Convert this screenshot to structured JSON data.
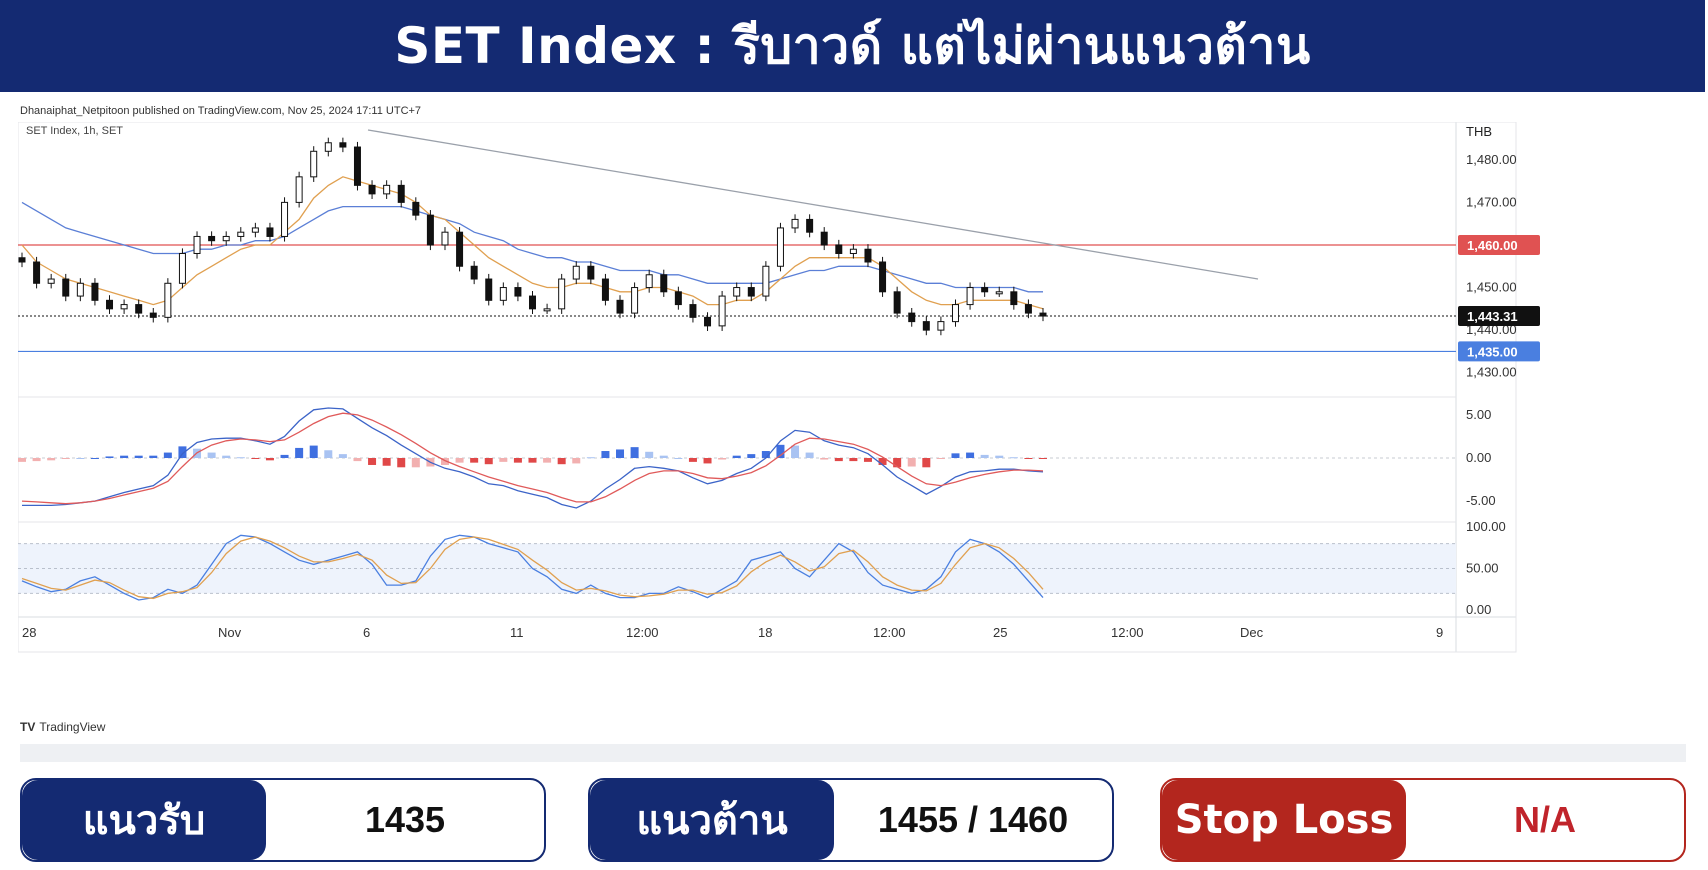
{
  "header": {
    "title": "SET Index : รีบาวด์ แต่ไม่ผ่านแนวต้าน"
  },
  "credit": "Dhanaiphat_Netpitoon published on TradingView.com, Nov 25, 2024 17:11 UTC+7",
  "chart_data": {
    "type": "candlestick",
    "symbol_label": "SET Index, 1h, SET",
    "currency": "THB",
    "price_axis": {
      "ylim": [
        1425,
        1487
      ],
      "ticks": [
        "1,480.00",
        "1,470.00",
        "1,450.00",
        "1,440.00",
        "1,430.00"
      ]
    },
    "x_ticks": [
      "28",
      "Nov",
      "6",
      "11",
      "12:00",
      "18",
      "12:00",
      "25",
      "12:00",
      "Dec",
      "9"
    ],
    "levels": [
      {
        "name": "resistance",
        "value": 1460,
        "label": "1,460.00",
        "color": "#e05252"
      },
      {
        "name": "support",
        "value": 1435,
        "label": "1,435.00",
        "color": "#4a7fe0"
      },
      {
        "name": "last",
        "value": 1443.31,
        "label": "1,443.31",
        "color": "#111111"
      }
    ],
    "downtrend_line": {
      "from": [
        0,
        1487
      ],
      "to": [
        1,
        1452
      ]
    },
    "close_series": [
      1456,
      1451,
      1452,
      1448,
      1451,
      1447,
      1445,
      1446,
      1444,
      1443,
      1451,
      1458,
      1462,
      1461,
      1462,
      1463,
      1464,
      1462,
      1470,
      1476,
      1482,
      1484,
      1483,
      1474,
      1472,
      1474,
      1470,
      1467,
      1460,
      1463,
      1455,
      1452,
      1447,
      1450,
      1448,
      1445,
      1445,
      1452,
      1455,
      1452,
      1447,
      1444,
      1450,
      1453,
      1449,
      1446,
      1443,
      1441,
      1448,
      1450,
      1448,
      1455,
      1464,
      1466,
      1463,
      1460,
      1458,
      1459,
      1456,
      1449,
      1444,
      1442,
      1440,
      1442,
      1446,
      1450,
      1449,
      1449,
      1446,
      1444,
      1443.31
    ],
    "ema_fast": [
      1460,
      1456,
      1454,
      1452,
      1451,
      1450,
      1449,
      1448,
      1447,
      1446,
      1447,
      1450,
      1453,
      1455,
      1457,
      1459,
      1460,
      1460,
      1463,
      1466,
      1471,
      1474,
      1476,
      1475,
      1474,
      1473,
      1472,
      1470,
      1467,
      1466,
      1463,
      1460,
      1457,
      1455,
      1453,
      1451,
      1450,
      1450,
      1451,
      1451,
      1450,
      1449,
      1449,
      1450,
      1450,
      1449,
      1448,
      1446,
      1446,
      1447,
      1447,
      1449,
      1452,
      1455,
      1457,
      1457,
      1457,
      1457,
      1457,
      1455,
      1452,
      1449,
      1447,
      1446,
      1446,
      1447,
      1447,
      1447,
      1447,
      1446,
      1445
    ],
    "ema_slow": [
      1470,
      1468,
      1466,
      1464,
      1463,
      1462,
      1461,
      1460,
      1459,
      1458,
      1458,
      1458,
      1459,
      1459,
      1460,
      1460,
      1461,
      1461,
      1462,
      1464,
      1466,
      1468,
      1469,
      1469,
      1469,
      1469,
      1469,
      1468,
      1467,
      1466,
      1465,
      1463,
      1462,
      1461,
      1459,
      1458,
      1457,
      1457,
      1456,
      1456,
      1455,
      1454,
      1454,
      1454,
      1453,
      1453,
      1452,
      1451,
      1451,
      1451,
      1451,
      1451,
      1452,
      1453,
      1454,
      1454,
      1455,
      1455,
      1455,
      1454,
      1453,
      1452,
      1451,
      1451,
      1450,
      1450,
      1450,
      1450,
      1450,
      1449,
      1449
    ],
    "macd_panel": {
      "ylim": [
        -6.5,
        6.5
      ],
      "ticks": [
        "5.00",
        "0.00",
        "-5.00"
      ],
      "macd": [
        -5.5,
        -5.5,
        -5.5,
        -5.4,
        -5.2,
        -5.0,
        -4.5,
        -4.0,
        -3.6,
        -3.2,
        -2.0,
        0.5,
        1.8,
        2.2,
        2.3,
        2.3,
        2.0,
        1.6,
        2.5,
        4.3,
        5.6,
        5.8,
        5.7,
        4.6,
        3.5,
        2.6,
        1.5,
        0.5,
        -0.5,
        -1.2,
        -1.6,
        -2.2,
        -3.0,
        -3.2,
        -3.8,
        -4.2,
        -4.6,
        -5.4,
        -5.8,
        -5.0,
        -3.6,
        -2.5,
        -1.2,
        -1.0,
        -1.2,
        -1.5,
        -2.3,
        -3.0,
        -2.6,
        -1.8,
        -1.2,
        0.0,
        2.0,
        3.2,
        3.0,
        2.0,
        1.5,
        1.2,
        0.5,
        -0.8,
        -2.2,
        -3.2,
        -4.2,
        -3.3,
        -2.2,
        -1.6,
        -1.5,
        -1.3,
        -1.3,
        -1.5,
        -1.6
      ],
      "signal": [
        -5.0,
        -5.1,
        -5.2,
        -5.3,
        -5.2,
        -5.0,
        -4.7,
        -4.3,
        -3.9,
        -3.5,
        -2.7,
        -1.0,
        0.6,
        1.5,
        2.0,
        2.2,
        2.1,
        1.9,
        2.1,
        3.0,
        4.0,
        4.8,
        5.2,
        5.0,
        4.4,
        3.6,
        2.7,
        1.7,
        0.6,
        -0.3,
        -1.0,
        -1.6,
        -2.2,
        -2.7,
        -3.2,
        -3.6,
        -4.0,
        -4.6,
        -5.1,
        -5.1,
        -4.5,
        -3.6,
        -2.6,
        -1.8,
        -1.5,
        -1.5,
        -1.8,
        -2.3,
        -2.4,
        -2.1,
        -1.7,
        -0.9,
        0.3,
        1.6,
        2.3,
        2.2,
        1.9,
        1.6,
        1.0,
        0.1,
        -1.0,
        -2.1,
        -3.0,
        -3.2,
        -2.8,
        -2.3,
        -1.9,
        -1.6,
        -1.4,
        -1.4,
        -1.5
      ]
    },
    "stoch_panel": {
      "ylim": [
        0,
        100
      ],
      "ticks": [
        "100.00",
        "50.00",
        "0.00"
      ],
      "k": [
        35,
        28,
        22,
        25,
        35,
        40,
        30,
        20,
        12,
        15,
        25,
        20,
        30,
        55,
        80,
        90,
        88,
        80,
        70,
        60,
        55,
        60,
        65,
        70,
        55,
        30,
        30,
        35,
        65,
        85,
        90,
        88,
        80,
        75,
        70,
        50,
        40,
        25,
        20,
        30,
        20,
        15,
        15,
        20,
        20,
        28,
        22,
        15,
        25,
        35,
        60,
        65,
        70,
        50,
        40,
        60,
        80,
        70,
        45,
        30,
        25,
        20,
        25,
        40,
        70,
        85,
        80,
        70,
        55,
        35,
        15
      ],
      "d": [
        38,
        32,
        26,
        24,
        30,
        36,
        33,
        24,
        16,
        14,
        20,
        22,
        27,
        45,
        68,
        83,
        88,
        83,
        75,
        65,
        58,
        58,
        62,
        67,
        60,
        42,
        32,
        33,
        50,
        73,
        85,
        88,
        85,
        79,
        73,
        60,
        48,
        33,
        24,
        26,
        23,
        18,
        16,
        17,
        19,
        24,
        24,
        19,
        21,
        29,
        46,
        58,
        66,
        58,
        47,
        52,
        68,
        72,
        58,
        40,
        30,
        24,
        23,
        32,
        55,
        75,
        80,
        75,
        62,
        45,
        25
      ]
    }
  },
  "tv_logo": "TradingView",
  "bottom": {
    "support": {
      "label": "แนวรับ",
      "value": "1435"
    },
    "resistance": {
      "label": "แนวต้าน",
      "value": "1455 / 1460"
    },
    "stoploss": {
      "label": "Stop Loss",
      "value": "N/A"
    }
  }
}
